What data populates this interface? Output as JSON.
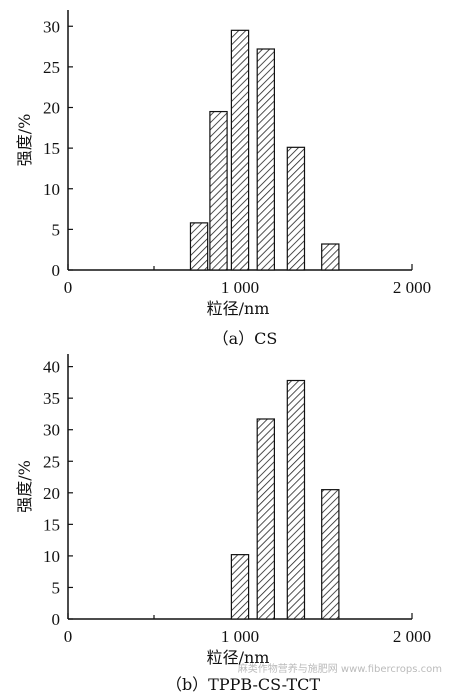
{
  "chart_data": [
    {
      "type": "bar",
      "xlabel": "粒径/nm",
      "ylabel": "强度/%",
      "caption": "（a）CS",
      "xlim": [
        0,
        2000
      ],
      "ylim": [
        0,
        32
      ],
      "xticks": [
        0,
        1000,
        2000
      ],
      "xtick_labels": [
        "0",
        "1 000",
        "2 000"
      ],
      "yticks": [
        0,
        5,
        10,
        15,
        20,
        25,
        30
      ],
      "bar_width": 100,
      "x": [
        712,
        825,
        950,
        1100,
        1275,
        1475
      ],
      "values": [
        5.8,
        19.5,
        29.5,
        27.2,
        15.1,
        3.2
      ]
    },
    {
      "type": "bar",
      "xlabel": "粒径/nm",
      "ylabel": "强度/%",
      "caption": "（b）TPPB-CS-TCT",
      "xlim": [
        0,
        2000
      ],
      "ylim": [
        0,
        42
      ],
      "xticks": [
        0,
        1000,
        2000
      ],
      "xtick_labels": [
        "0",
        "1 000",
        "2 000"
      ],
      "yticks": [
        0,
        5,
        10,
        15,
        20,
        25,
        30,
        35,
        40
      ],
      "bar_width": 100,
      "x": [
        950,
        1100,
        1275,
        1475
      ],
      "values": [
        10.2,
        31.7,
        37.8,
        20.5
      ]
    }
  ],
  "watermark": "麻类作物营养与施肥网 www.fibercrops.com"
}
